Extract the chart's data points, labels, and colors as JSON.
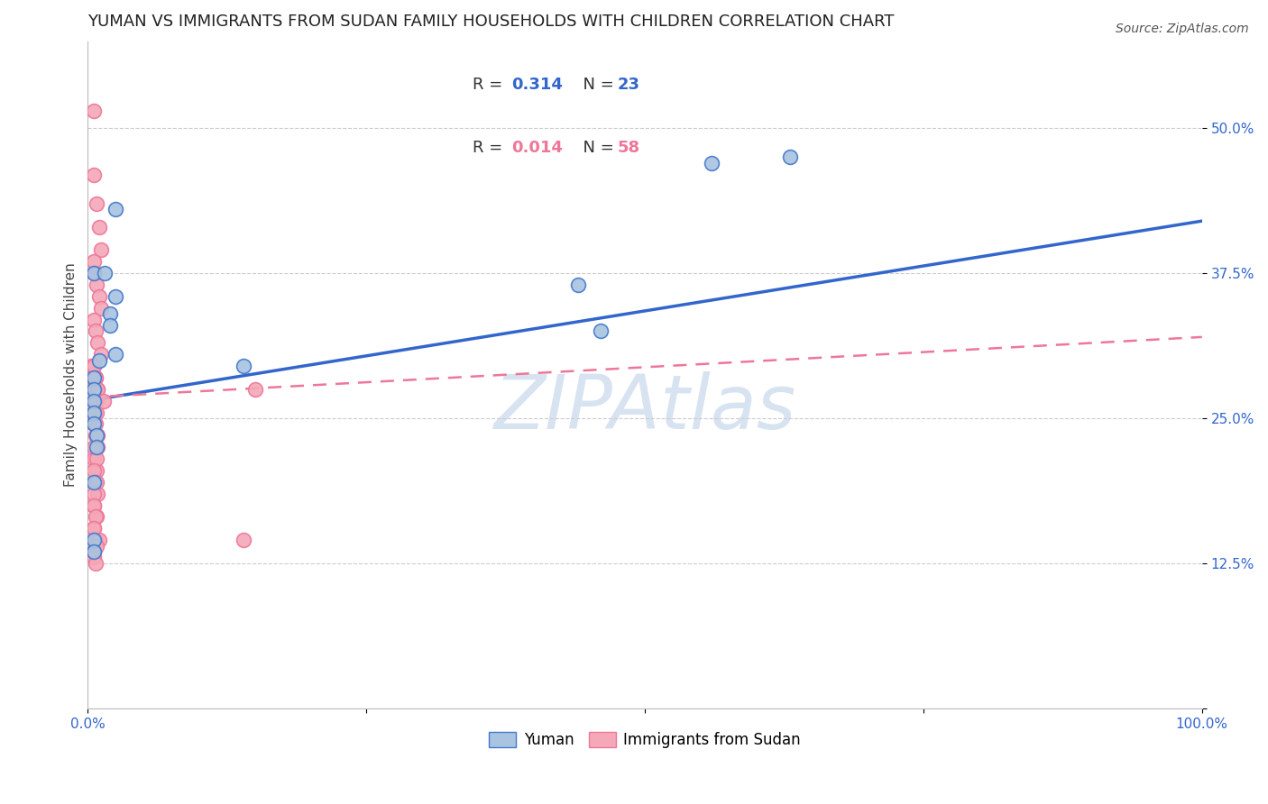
{
  "title": "YUMAN VS IMMIGRANTS FROM SUDAN FAMILY HOUSEHOLDS WITH CHILDREN CORRELATION CHART",
  "source": "Source: ZipAtlas.com",
  "ylabel": "Family Households with Children",
  "xlim": [
    0.0,
    1.0
  ],
  "ylim": [
    0.0,
    0.575
  ],
  "xticks": [
    0.0,
    0.25,
    0.5,
    0.75,
    1.0
  ],
  "xtick_labels": [
    "0.0%",
    "",
    "",
    "",
    "100.0%"
  ],
  "yticks": [
    0.0,
    0.125,
    0.25,
    0.375,
    0.5
  ],
  "ytick_labels": [
    "",
    "12.5%",
    "25.0%",
    "37.5%",
    "50.0%"
  ],
  "blue_color": "#A8C4E0",
  "pink_color": "#F4A8B8",
  "blue_edge_color": "#4477CC",
  "pink_edge_color": "#EE7799",
  "blue_line_color": "#3366CC",
  "pink_line_color": "#EE7799",
  "tick_color": "#3366CC",
  "background_color": "#FFFFFF",
  "watermark_text": "ZIPAtlas",
  "blue_label": "Yuman",
  "pink_label": "Immigrants from Sudan",
  "blue_x": [
    0.005,
    0.025,
    0.015,
    0.025,
    0.02,
    0.02,
    0.025,
    0.01,
    0.005,
    0.005,
    0.005,
    0.005,
    0.005,
    0.008,
    0.008,
    0.005,
    0.005,
    0.14,
    0.46,
    0.56,
    0.63,
    0.44,
    0.005
  ],
  "blue_y": [
    0.375,
    0.43,
    0.375,
    0.355,
    0.34,
    0.33,
    0.305,
    0.3,
    0.285,
    0.275,
    0.265,
    0.255,
    0.245,
    0.235,
    0.225,
    0.195,
    0.145,
    0.295,
    0.325,
    0.47,
    0.475,
    0.365,
    0.135
  ],
  "pink_x": [
    0.005,
    0.005,
    0.008,
    0.01,
    0.012,
    0.005,
    0.006,
    0.008,
    0.01,
    0.012,
    0.005,
    0.007,
    0.009,
    0.012,
    0.005,
    0.007,
    0.009,
    0.006,
    0.008,
    0.005,
    0.007,
    0.009,
    0.005,
    0.008,
    0.003,
    0.004,
    0.006,
    0.008,
    0.005,
    0.007,
    0.009,
    0.005,
    0.008,
    0.005,
    0.007,
    0.009,
    0.005,
    0.008,
    0.005,
    0.007,
    0.005,
    0.008,
    0.005,
    0.005,
    0.007,
    0.005,
    0.01,
    0.005,
    0.005,
    0.007,
    0.009,
    0.014,
    0.005,
    0.008,
    0.005,
    0.007,
    0.15,
    0.14
  ],
  "pink_y": [
    0.515,
    0.46,
    0.435,
    0.415,
    0.395,
    0.385,
    0.375,
    0.365,
    0.355,
    0.345,
    0.335,
    0.325,
    0.315,
    0.305,
    0.295,
    0.285,
    0.275,
    0.265,
    0.255,
    0.245,
    0.235,
    0.225,
    0.215,
    0.205,
    0.295,
    0.285,
    0.275,
    0.265,
    0.255,
    0.245,
    0.235,
    0.225,
    0.215,
    0.205,
    0.195,
    0.185,
    0.175,
    0.165,
    0.155,
    0.145,
    0.135,
    0.195,
    0.185,
    0.175,
    0.165,
    0.155,
    0.145,
    0.135,
    0.295,
    0.285,
    0.275,
    0.265,
    0.255,
    0.14,
    0.13,
    0.125,
    0.275,
    0.145
  ],
  "blue_trendline_x": [
    0.0,
    1.0
  ],
  "blue_trendline_y": [
    0.265,
    0.42
  ],
  "pink_trendline_x": [
    0.0,
    1.0
  ],
  "pink_trendline_y": [
    0.268,
    0.32
  ],
  "title_fontsize": 13,
  "axis_label_fontsize": 11,
  "tick_fontsize": 11,
  "legend_fontsize": 13
}
